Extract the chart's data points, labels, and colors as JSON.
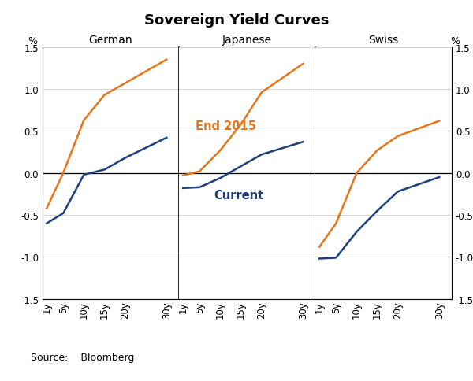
{
  "title": "Sovereign Yield Curves",
  "source": "Source:    Bloomberg",
  "x_values": [
    1,
    5,
    10,
    15,
    20,
    30
  ],
  "x_ticks": [
    "1y",
    "5y",
    "10y",
    "15y",
    "20y",
    "30y"
  ],
  "ylim": [
    -1.5,
    1.5
  ],
  "yticks": [
    -1.5,
    -1.0,
    -0.5,
    0.0,
    0.5,
    1.0,
    1.5
  ],
  "ytick_labels": [
    "-1.5",
    "-1.0",
    "-0.5",
    "0.0",
    "0.5",
    "1.0",
    "1.5"
  ],
  "panels": [
    "German",
    "Japanese",
    "Swiss"
  ],
  "color_end2015": "#E8751A",
  "color_current": "#1F3E7C",
  "german_end2015": [
    -0.42,
    0.0,
    0.63,
    0.93,
    1.07,
    1.35
  ],
  "german_current": [
    -0.6,
    -0.48,
    -0.02,
    0.04,
    0.18,
    0.42
  ],
  "japanese_end2015": [
    -0.03,
    0.02,
    0.27,
    0.58,
    0.96,
    1.3
  ],
  "japanese_current": [
    -0.18,
    -0.17,
    -0.06,
    0.08,
    0.22,
    0.37
  ],
  "swiss_end2015": [
    -0.88,
    -0.6,
    0.0,
    0.27,
    0.44,
    0.62
  ],
  "swiss_current": [
    -1.02,
    -1.01,
    -0.7,
    -0.45,
    -0.22,
    -0.05
  ],
  "end2015_label": "End 2015",
  "current_label": "Current",
  "title_fontsize": 13,
  "tick_fontsize": 8.5,
  "panel_fontsize": 10,
  "annot_fontsize": 10.5,
  "source_fontsize": 9,
  "bg_color": "#ffffff",
  "grid_color": "#d8d8d8",
  "line_width": 1.8
}
